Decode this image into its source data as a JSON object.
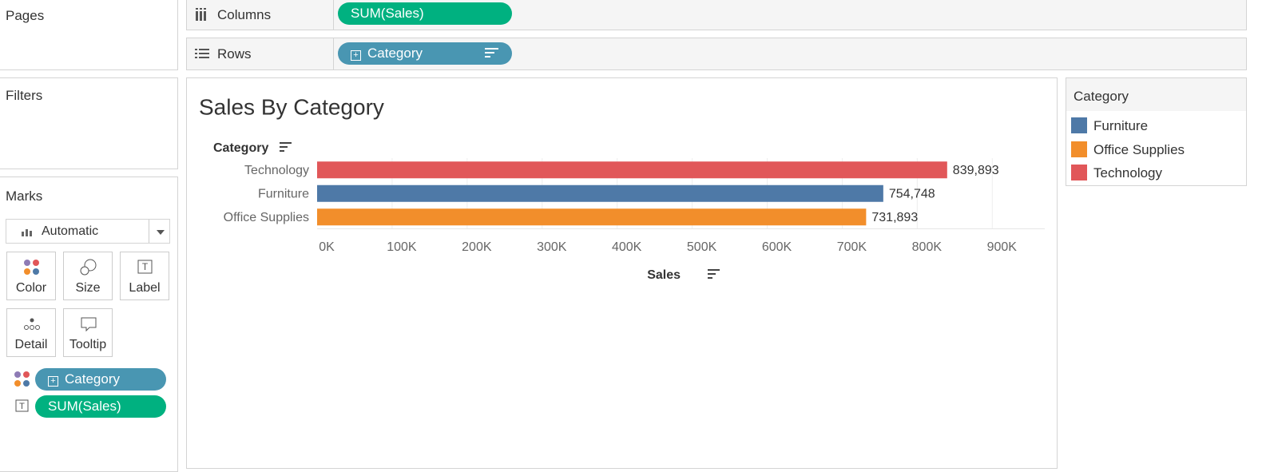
{
  "shelves": {
    "pages": "Pages",
    "filters": "Filters",
    "columns": {
      "label": "Columns",
      "pill": "SUM(Sales)"
    },
    "rows": {
      "label": "Rows",
      "pill": "Category"
    }
  },
  "marks": {
    "title": "Marks",
    "mark_type": "Automatic",
    "buttons": [
      "Color",
      "Size",
      "Label",
      "Detail",
      "Tooltip"
    ],
    "pills": [
      "Category",
      "SUM(Sales)"
    ]
  },
  "chart_data": {
    "type": "bar",
    "orientation": "horizontal",
    "title": "Sales By Category",
    "y_label": "Category",
    "x_label": "Sales",
    "categories": [
      "Technology",
      "Furniture",
      "Office Supplies"
    ],
    "values": [
      839893,
      754748,
      731893
    ],
    "value_labels": [
      "839,893",
      "754,748",
      "731,893"
    ],
    "colors": [
      "#e15759",
      "#4e79a7",
      "#f28e2b"
    ],
    "xlim": [
      0,
      970000
    ],
    "xticks": [
      {
        "value": 0,
        "label": "0K"
      },
      {
        "value": 100000,
        "label": "100K"
      },
      {
        "value": 200000,
        "label": "200K"
      },
      {
        "value": 300000,
        "label": "300K"
      },
      {
        "value": 400000,
        "label": "400K"
      },
      {
        "value": 500000,
        "label": "500K"
      },
      {
        "value": 600000,
        "label": "600K"
      },
      {
        "value": 700000,
        "label": "700K"
      },
      {
        "value": 800000,
        "label": "800K"
      },
      {
        "value": 900000,
        "label": "900K"
      }
    ],
    "grid": true
  },
  "legend": {
    "title": "Category",
    "items": [
      {
        "name": "Furniture",
        "color": "#4e79a7"
      },
      {
        "name": "Office Supplies",
        "color": "#f28e2b"
      },
      {
        "name": "Technology",
        "color": "#e15759"
      }
    ]
  }
}
